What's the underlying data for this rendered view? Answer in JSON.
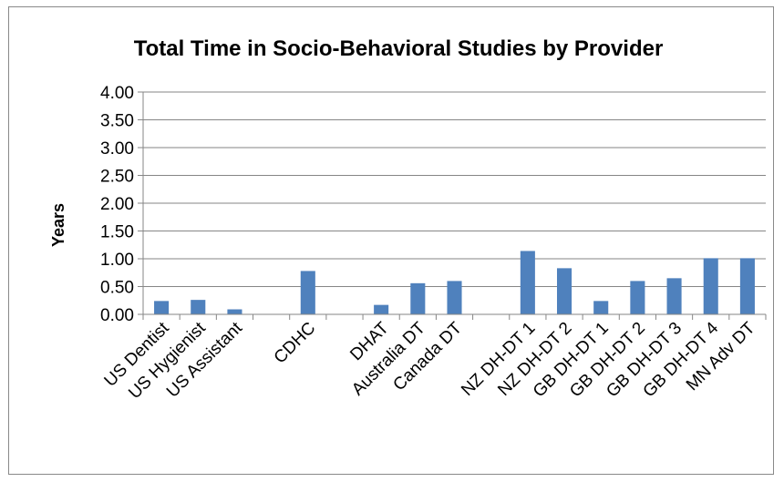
{
  "chart_data": {
    "type": "bar",
    "title": "Total Time in Socio-Behavioral Studies by Provider",
    "ylabel": "Years",
    "xlabel": "",
    "ylim": [
      0,
      4
    ],
    "yticks": [
      "0.00",
      "0.50",
      "1.00",
      "1.50",
      "2.00",
      "2.50",
      "3.00",
      "3.50",
      "4.00"
    ],
    "grid": true,
    "legend": "none",
    "bar_color": "#4F81BD",
    "categories": [
      "US Dentist",
      "US Hygienist",
      "US Assistant",
      "",
      "CDHC",
      "",
      "DHAT",
      "Australia DT",
      "Canada DT",
      "",
      "NZ DH-DT 1",
      "NZ DH-DT 2",
      "GB DH-DT 1",
      "GB DH-DT 2",
      "GB DH-DT 3",
      "GB DH-DT 4",
      "MN Adv DT"
    ],
    "values": [
      0.24,
      0.26,
      0.09,
      null,
      0.78,
      null,
      0.17,
      0.56,
      0.6,
      null,
      1.14,
      0.83,
      0.24,
      0.6,
      0.65,
      1.01,
      1.01
    ]
  }
}
